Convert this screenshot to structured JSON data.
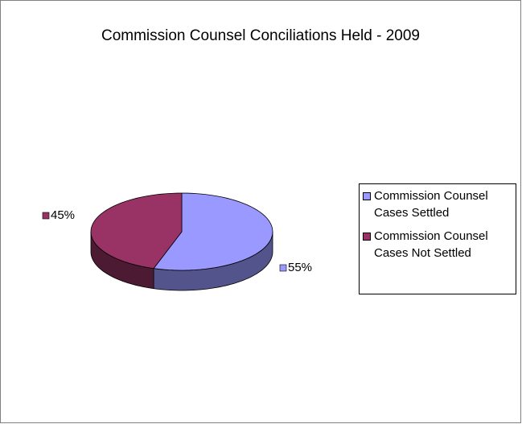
{
  "chart_data": {
    "type": "pie",
    "title": "Commission Counsel Conciliations Held - 2009",
    "categories": [
      "Commission Counsel Cases Settled",
      "Commission Counsel Cases Not Settled"
    ],
    "values": [
      55,
      45
    ],
    "value_labels": [
      "55%",
      "45%"
    ],
    "colors": [
      "#9999ff",
      "#993366"
    ],
    "legend": "right"
  }
}
